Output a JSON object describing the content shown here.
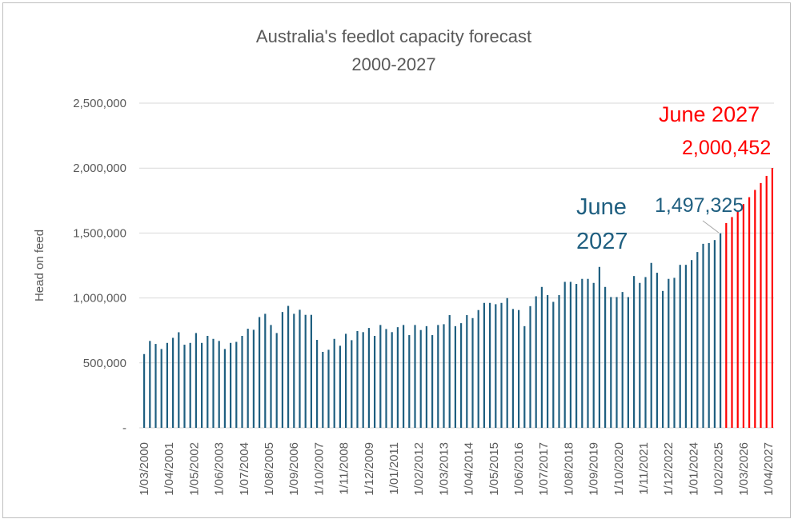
{
  "chart_data": {
    "type": "bar",
    "title": [
      "Australia's feedlot capacity forecast",
      "2000-2027"
    ],
    "ylabel": "Head on feed",
    "xlabel": "",
    "ylim": [
      0,
      2500000
    ],
    "y_ticks": [
      "-",
      "500,000",
      "1,000,000",
      "1,500,000",
      "2,000,000",
      "2,500,000"
    ],
    "grid": "horizontal",
    "x_start": "1/03/2000",
    "x_interval": "quarterly",
    "x_tick_labels": [
      "1/03/2000",
      "1/04/2001",
      "1/05/2002",
      "1/06/2003",
      "1/07/2004",
      "1/08/2005",
      "1/09/2006",
      "1/10/2007",
      "1/11/2008",
      "1/12/2009",
      "1/01/2011",
      "1/02/2012",
      "1/03/2013",
      "1/04/2014",
      "1/05/2015",
      "1/06/2016",
      "1/07/2017",
      "1/08/2018",
      "1/09/2019",
      "1/10/2020",
      "1/11/2021",
      "1/12/2022",
      "1/01/2024",
      "1/02/2025",
      "1/03/2026",
      "1/04/2027"
    ],
    "series": [
      {
        "values": [
          568000,
          669000,
          646000,
          607000,
          654000,
          693000,
          736000,
          640000,
          654000,
          730000,
          654000,
          708000,
          685000,
          669000,
          607000,
          654000,
          662000,
          708000,
          763000,
          755000,
          853000,
          878000,
          792000,
          730000,
          892000,
          939000,
          878000,
          909000,
          870000,
          870000,
          677000,
          585000,
          601000,
          685000,
          632000,
          724000,
          675000,
          745000,
          737000,
          769000,
          708000,
          792000,
          761000,
          737000,
          775000,
          792000,
          714000,
          792000,
          753000,
          783000,
          714000,
          792000,
          798000,
          868000,
          783000,
          806000,
          868000,
          845000,
          907000,
          962000,
          962000,
          952000,
          962000,
          999000,
          915000,
          907000,
          783000,
          937000,
          1013000,
          1085000,
          1022000,
          970000,
          1022000,
          1124000,
          1124000,
          1108000,
          1147000,
          1147000,
          1116000,
          1239000,
          1085000,
          1007000,
          1007000,
          1046000,
          1007000,
          1169000,
          1116000,
          1161000,
          1270000,
          1194000,
          1054000,
          1147000,
          1155000,
          1255000,
          1255000,
          1292000,
          1354000,
          1417000,
          1423000,
          1446000,
          1497325
        ],
        "color": "#1f5f80"
      },
      {
        "values": [
          1577000,
          1623000,
          1670000,
          1723000,
          1776000,
          1832000,
          1885000,
          1940000,
          2000452
        ],
        "color": "#ff0000"
      }
    ],
    "annotations": [
      {
        "text": [
          "June",
          "2027"
        ],
        "color": "#1f5f80"
      },
      {
        "text": "1,497,325",
        "color": "#1f5f80"
      },
      {
        "text": "June 2027",
        "color": "#ff0000"
      },
      {
        "text": "2,000,452",
        "color": "#ff0000"
      }
    ]
  }
}
